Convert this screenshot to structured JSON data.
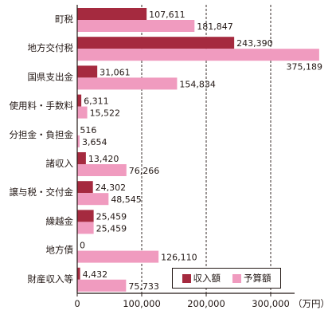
{
  "chart_data": {
    "type": "bar",
    "orientation": "horizontal",
    "unit": "（万円）",
    "categories": [
      "町税",
      "地方交付税",
      "国県支出金",
      "使用料・手数料",
      "分担金・負担金",
      "諸収入",
      "譲与税・交付金",
      "繰越金",
      "地方債",
      "財産収入等"
    ],
    "series": [
      {
        "name": "収入額",
        "color": "#a52a3f",
        "values": [
          107611,
          243390,
          31061,
          6311,
          516,
          13420,
          24302,
          25459,
          0,
          4432
        ],
        "labels": [
          "107,611",
          "243,390",
          "31,061",
          "6,311",
          "516",
          "13,420",
          "24,302",
          "25,459",
          "0",
          "4,432"
        ]
      },
      {
        "name": "予算額",
        "color": "#f09bbf",
        "values": [
          181847,
          375189,
          154834,
          15522,
          3654,
          76266,
          48545,
          25459,
          126110,
          75733
        ],
        "labels": [
          "181,847",
          "375,189",
          "154,834",
          "15,522",
          "3,654",
          "76,266",
          "48,545",
          "25,459",
          "126,110",
          "75,733"
        ]
      }
    ],
    "xlim": [
      0,
      370000
    ],
    "xticks": [
      0,
      100000,
      200000,
      300000
    ],
    "xtick_labels": [
      "0",
      "100,000",
      "200,000",
      "300,000"
    ],
    "gridlines": "dashed vertical at 100,000 / 200,000 / 300,000",
    "legend_position": "bottom-right"
  }
}
